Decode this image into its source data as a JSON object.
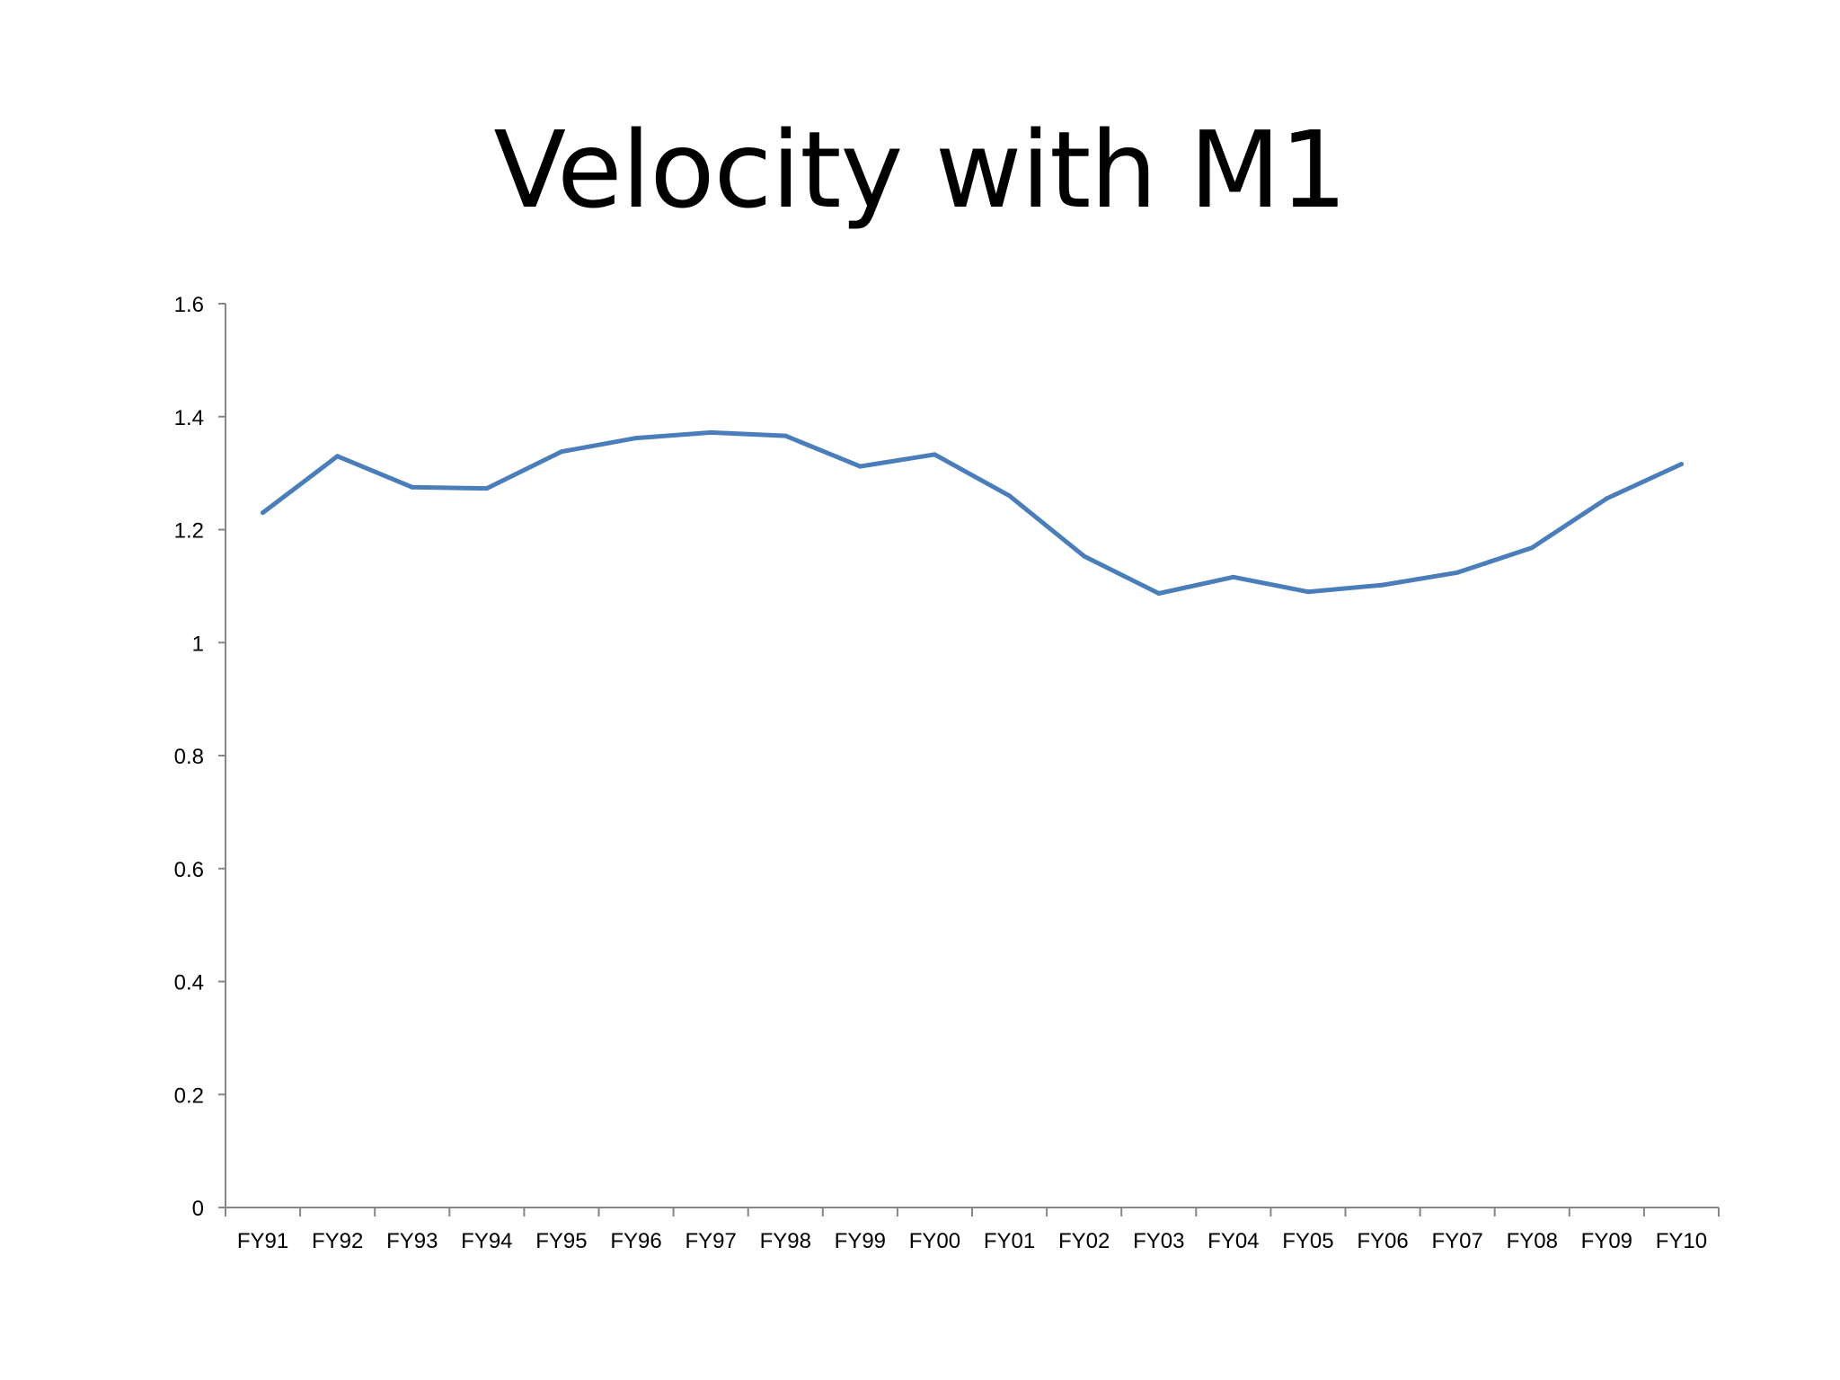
{
  "slide": {
    "title": "Velocity with M1"
  },
  "chart_data": {
    "type": "line",
    "title": "",
    "xlabel": "",
    "ylabel": "",
    "ylim": [
      0,
      1.6
    ],
    "yticks": [
      0,
      0.2,
      0.4,
      0.6,
      0.8,
      1,
      1.2,
      1.4,
      1.6
    ],
    "ytick_labels": [
      "0",
      "0.2",
      "0.4",
      "0.6",
      "0.8",
      "1",
      "1.2",
      "1.4",
      "1.6"
    ],
    "categories": [
      "FY91",
      "FY92",
      "FY93",
      "FY94",
      "FY95",
      "FY96",
      "FY97",
      "FY98",
      "FY99",
      "FY00",
      "FY01",
      "FY02",
      "FY03",
      "FY04",
      "FY05",
      "FY06",
      "FY07",
      "FY08",
      "FY09",
      "FY10"
    ],
    "series": [
      {
        "values": [
          1.23,
          1.33,
          1.275,
          1.273,
          1.338,
          1.362,
          1.372,
          1.366,
          1.312,
          1.333,
          1.26,
          1.153,
          1.087,
          1.116,
          1.09,
          1.102,
          1.124,
          1.168,
          1.255,
          1.316
        ],
        "color": "#4a7ebb"
      }
    ],
    "grid": false,
    "legend": "none"
  }
}
